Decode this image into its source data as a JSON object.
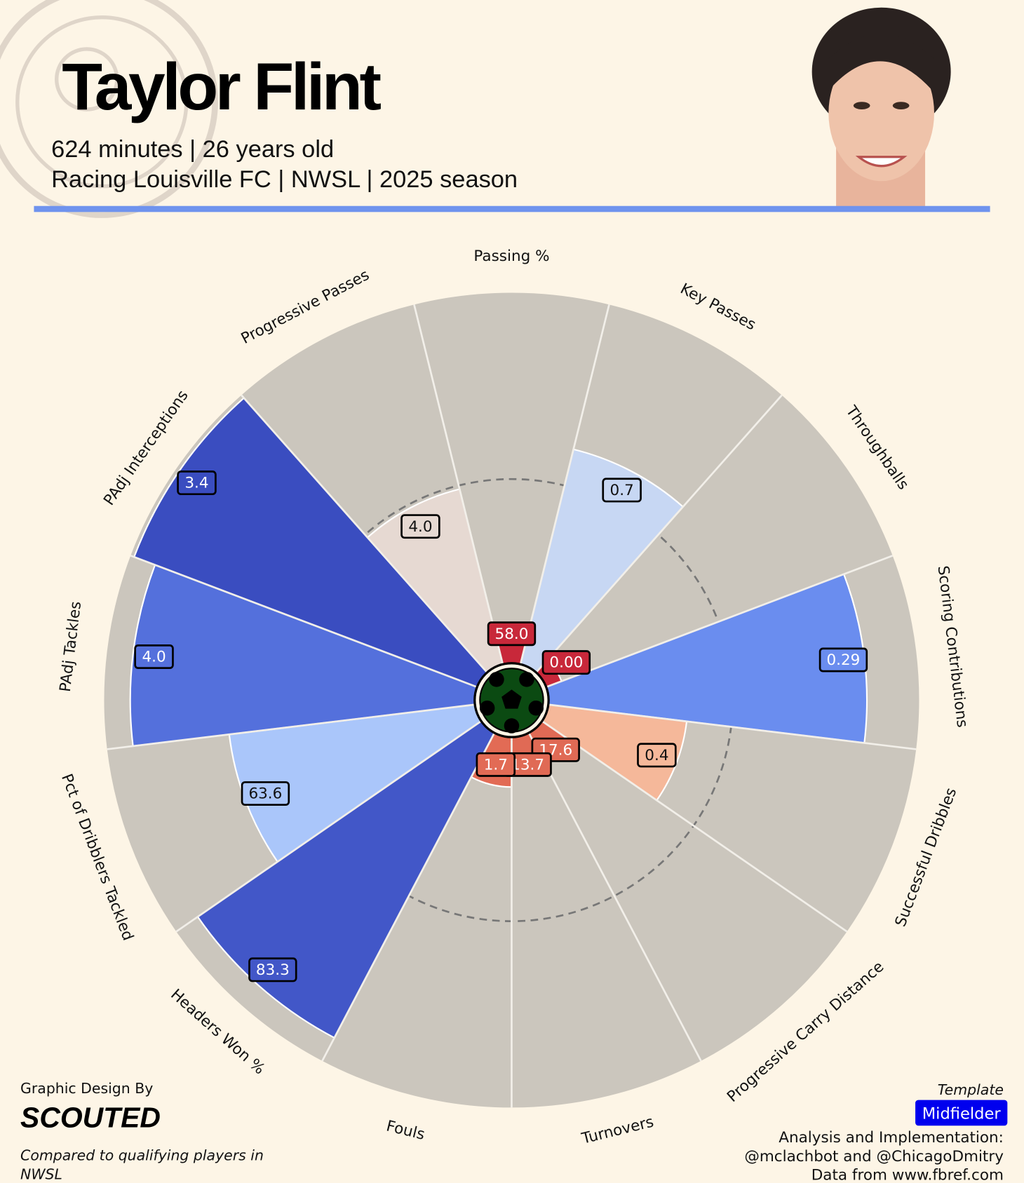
{
  "header": {
    "title": "Taylor Flint",
    "subtitle_1": "624 minutes | 26 years old",
    "subtitle_2": "Racing Louisville FC | NWSL | 2025 season"
  },
  "chart_data": {
    "type": "pizza",
    "categories": [
      "Passing %",
      "Key Passes",
      "Throughballs",
      "Scoring Contributions",
      "Successful Dribbles",
      "Progressive Carry Distance",
      "Turnovers",
      "Fouls",
      "Headers Won %",
      "Pct of Dribblers Tackled",
      "PAdj Tackles",
      "PAdj Interceptions",
      "Progressive Passes"
    ],
    "values": [
      58.0,
      0.7,
      0.0,
      0.29,
      0.4,
      17.6,
      13.7,
      1.7,
      83.3,
      63.6,
      4.0,
      3.4,
      4.0
    ],
    "value_labels": [
      "58.0",
      "0.7",
      "0.00",
      "0.29",
      "0.4",
      "17.6",
      "13.7",
      "1.7",
      "83.3",
      "63.6",
      "4.0",
      "3.4",
      "4.0"
    ],
    "percentiles": [
      8,
      60,
      5,
      86,
      38,
      9,
      10,
      14,
      93,
      67,
      93,
      99,
      49
    ],
    "rlim": [
      0,
      100
    ],
    "colors": [
      "#c8283a",
      "#c7d7f3",
      "#c8283a",
      "#6a8def",
      "#f5b89a",
      "#e06a55",
      "#e06a55",
      "#e26b55",
      "#4257c8",
      "#aac6fa",
      "#5470dc",
      "#3a4dc0",
      "#e6d9d2"
    ],
    "background_color": "#cbc6bd"
  },
  "footer": {
    "design_by": "Graphic Design By",
    "brand": "SCOUTED",
    "compared_1": "Compared to qualifying players in",
    "compared_2": "NWSL",
    "template_label": "Template",
    "template": "Midfielder",
    "analysis": "Analysis and Implementation:",
    "authors": "@mclachbot and @ChicagoDmitry",
    "source": "Data from www.fbref.com"
  }
}
